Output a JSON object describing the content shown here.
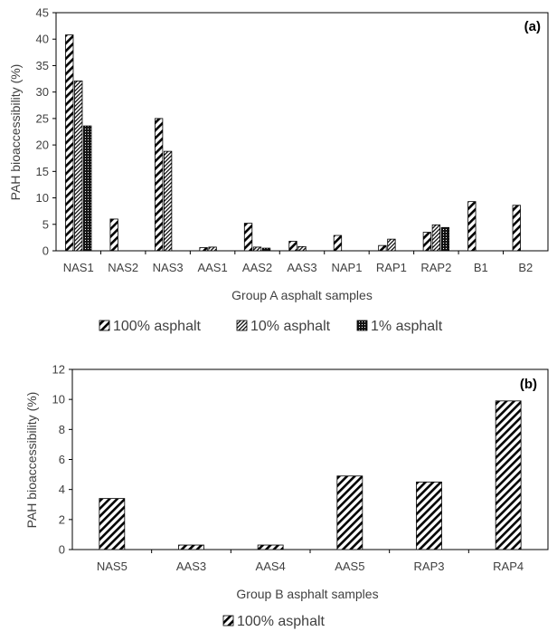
{
  "chart_data": [
    {
      "type": "bar",
      "panel_label": "(a)",
      "categories": [
        "NAS1",
        "NAS2",
        "NAS3",
        "AAS1",
        "AAS2",
        "AAS3",
        "NAP1",
        "RAP1",
        "RAP2",
        "B1",
        "B2"
      ],
      "series": [
        {
          "name": "100% asphalt",
          "values": [
            40.8,
            6.0,
            25.0,
            0.6,
            5.2,
            1.8,
            2.9,
            1.0,
            3.5,
            9.3,
            8.6
          ],
          "pattern": "wide-diagonal"
        },
        {
          "name": "10% asphalt",
          "values": [
            32.1,
            0,
            18.8,
            0.7,
            0.7,
            0.8,
            0,
            2.2,
            4.9,
            0,
            0
          ],
          "pattern": "fine-diagonal"
        },
        {
          "name": "1% asphalt",
          "values": [
            23.6,
            0,
            0,
            0,
            0.5,
            0,
            0,
            0,
            4.4,
            0,
            0
          ],
          "pattern": "dots"
        }
      ],
      "xlabel": "Group A asphalt samples",
      "ylabel": "PAH bioaccessibility (%)",
      "ylim": [
        0,
        45
      ],
      "yticks": [
        "0",
        "5",
        "10",
        "15",
        "20",
        "25",
        "30",
        "35",
        "40",
        "45"
      ],
      "grid": false,
      "legend": "bottom"
    },
    {
      "type": "bar",
      "panel_label": "(b)",
      "categories": [
        "NAS5",
        "AAS3",
        "AAS4",
        "AAS5",
        "RAP3",
        "RAP4"
      ],
      "series": [
        {
          "name": "100% asphalt",
          "values": [
            3.4,
            0.3,
            0.3,
            4.9,
            4.5,
            9.9
          ],
          "pattern": "wide-diagonal"
        }
      ],
      "xlabel": "Group B asphalt samples",
      "ylabel": "PAH bioaccessibility (%)",
      "ylim": [
        0,
        12
      ],
      "yticks": [
        "0",
        "2",
        "4",
        "6",
        "8",
        "10",
        "12"
      ],
      "grid": false,
      "legend": "bottom"
    }
  ]
}
